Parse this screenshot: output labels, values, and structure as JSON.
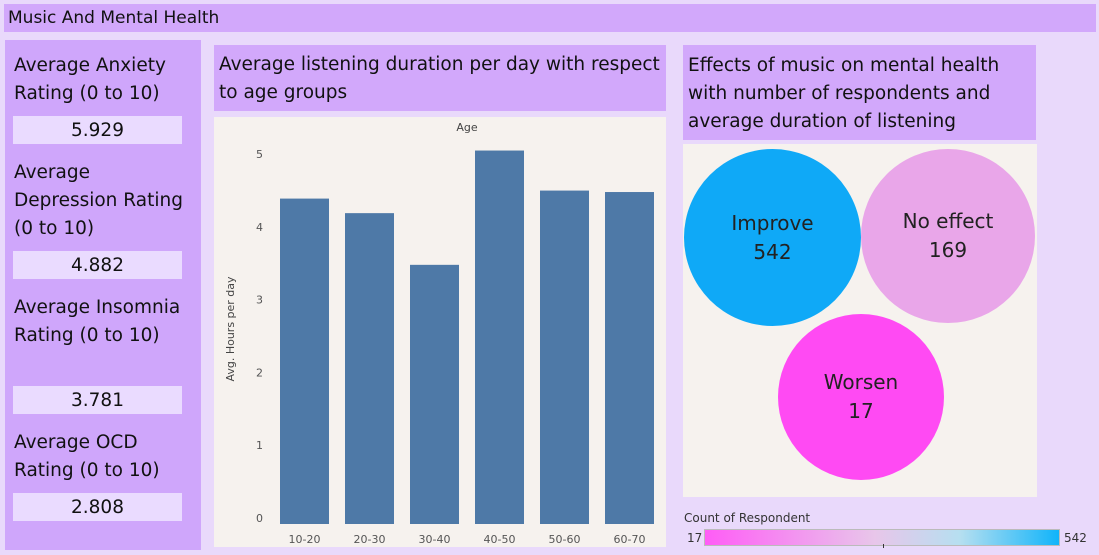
{
  "header": {
    "title": "Music And Mental Health"
  },
  "kpis": [
    {
      "label": "Average Anxiety Rating (0 to 10)",
      "value": "5.929"
    },
    {
      "label": "Average Depression Rating (0 to 10)",
      "value": "4.882"
    },
    {
      "label": "Average Insomnia Rating (0 to 10)",
      "value": "3.781"
    },
    {
      "label": "Average OCD Rating (0 to 10)",
      "value": "2.808"
    }
  ],
  "bar_panel": {
    "title": "Average listening duration per day with respect to age groups"
  },
  "bubble_panel": {
    "title": "Effects of music on mental health with number of respondents and average duration of listening"
  },
  "chart_data": [
    {
      "type": "bar",
      "title": "",
      "header_label": "Age",
      "xlabel": "",
      "ylabel": "Avg. Hours per day",
      "categories": [
        "10-20",
        "20-30",
        "30-40",
        "40-50",
        "50-60",
        "60-70"
      ],
      "values": [
        4.47,
        4.27,
        3.56,
        5.13,
        4.58,
        4.56
      ],
      "ylim": [
        0,
        5.5
      ],
      "yticks": [
        0,
        1,
        2,
        3,
        4,
        5
      ],
      "grid": false,
      "color": "#4e79a7"
    },
    {
      "type": "bubble",
      "title": "",
      "categories": [
        "Improve",
        "No effect",
        "Worsen"
      ],
      "values": [
        542,
        169,
        17
      ],
      "colors": [
        "#0fa9f7",
        "#e9a6e9",
        "#ff4af3"
      ]
    }
  ],
  "legend": {
    "title": "Count of Respondent",
    "min": "17",
    "max": "542"
  }
}
